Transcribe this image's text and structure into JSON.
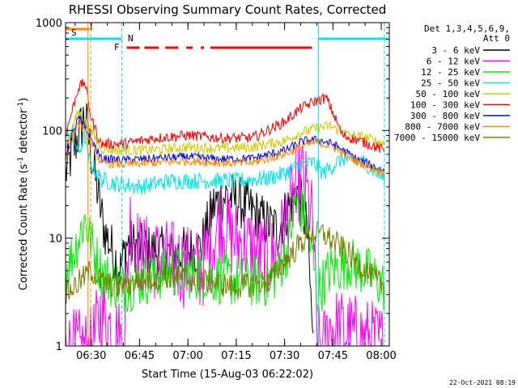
{
  "chart_data": {
    "type": "line",
    "title": "RHESSI Observing Summary Count Rates, Corrected",
    "xlabel": "Start Time (15-Aug-03 06:22:02)",
    "ylabel": "Corrected Count Rate (s-1 detector-1)",
    "ylabel_parts": {
      "main": "Corrected Count Rate (s",
      "exp1": "-1",
      "mid": " detector",
      "exp2": "-1",
      "end": ")"
    },
    "y_scale": "log",
    "ylim": [
      1,
      1000
    ],
    "y_ticks": [
      {
        "value": 1,
        "label": "1"
      },
      {
        "value": 10,
        "label": "10"
      },
      {
        "value": 100,
        "label": "100"
      },
      {
        "value": 1000,
        "label": "1000"
      }
    ],
    "xlim": [
      "06:22:02",
      "08:02:30"
    ],
    "x_ticks": [
      {
        "time": "06:30",
        "label": "06:30"
      },
      {
        "time": "06:45",
        "label": "06:45"
      },
      {
        "time": "07:00",
        "label": "07:00"
      },
      {
        "time": "07:15",
        "label": "07:15"
      },
      {
        "time": "07:30",
        "label": "07:30"
      },
      {
        "time": "07:45",
        "label": "07:45"
      },
      {
        "time": "08:00",
        "label": "08:00"
      }
    ],
    "grid": false,
    "legend_position": "right",
    "legend_header": [
      "Det 1,3,4,5,6,9,",
      "Att 0"
    ],
    "footer_date": "22-Oct-2021 08:19",
    "flags": {
      "saa": {
        "label": "S",
        "color": "#ff8c00",
        "start": "06:22:02",
        "end": "06:29:30"
      },
      "night": {
        "label": "N",
        "color": "#00e5e5",
        "segments": [
          [
            "06:22:02",
            "06:39:30"
          ],
          [
            "07:40:30",
            "08:02:00"
          ]
        ]
      },
      "flare": {
        "label": "F",
        "color": "#ff0000",
        "segments": [
          [
            "06:41:00",
            "06:45:00"
          ],
          [
            "06:46:30",
            "06:51:00"
          ],
          [
            "06:53:00",
            "06:57:00"
          ],
          [
            "06:59:30",
            "07:01:30"
          ],
          [
            "07:04:00",
            "07:05:00"
          ],
          [
            "07:07:00",
            "07:38:30"
          ]
        ]
      }
    },
    "vertical_lines": [
      {
        "time": "06:29:00",
        "color": "#ff8c00",
        "style": "solid"
      },
      {
        "time": "06:29:50",
        "color": "#ff8c00",
        "style": "dashed"
      },
      {
        "time": "06:39:30",
        "color": "#00e5e5",
        "style": "dashed"
      },
      {
        "time": "07:40:30",
        "color": "#00e5e5",
        "style": "solid"
      },
      {
        "time": "08:01:00",
        "color": "#00e5e5",
        "style": "dashed"
      }
    ],
    "series": [
      {
        "name": "3 - 6 keV",
        "color": "#000000",
        "noise": 0.25,
        "x": [
          "06:22",
          "06:26",
          "06:28",
          "06:30",
          "06:34",
          "06:39",
          "06:41",
          "06:45",
          "06:55",
          "07:04",
          "07:08",
          "07:12",
          "07:18",
          "07:24",
          "07:28",
          "07:32",
          "07:34",
          "07:37",
          "07:39"
        ],
        "y": [
          40,
          90,
          140,
          60,
          12,
          5,
          9,
          8,
          7,
          8,
          20,
          25,
          20,
          14,
          12,
          22,
          28,
          12,
          0.9
        ]
      },
      {
        "name": "6 - 12 keV",
        "color": "#ff00ff",
        "noise": 0.4,
        "x": [
          "06:22",
          "06:30",
          "06:33",
          "06:36",
          "06:40",
          "06:42",
          "06:45",
          "06:55",
          "07:04",
          "07:07",
          "07:10",
          "07:14",
          "07:20",
          "07:25",
          "07:28",
          "07:32",
          "07:35",
          "07:37",
          "07:39",
          "07:40",
          "07:42",
          "07:44",
          "08:01"
        ],
        "y": [
          0.9,
          0.9,
          2,
          1.5,
          1,
          15,
          7,
          6,
          5,
          8,
          15,
          10,
          8,
          6,
          8,
          20,
          40,
          25,
          12,
          1,
          0.9,
          1.5,
          1
        ]
      },
      {
        "name": "12 - 25 keV",
        "color": "#00ee00",
        "noise": 0.25,
        "x": [
          "06:22",
          "06:25",
          "06:28",
          "06:30",
          "06:33",
          "06:36",
          "06:40",
          "06:45",
          "06:55",
          "07:05",
          "07:15",
          "07:25",
          "07:28",
          "07:31",
          "07:33",
          "07:36",
          "07:39",
          "07:40",
          "07:44",
          "07:50",
          "07:57",
          "08:01"
        ],
        "y": [
          5,
          8,
          15,
          9,
          5,
          4,
          3.5,
          4,
          5,
          4.5,
          4,
          4,
          5,
          8,
          20,
          18,
          6,
          3,
          5,
          6,
          4.5,
          3.5
        ]
      },
      {
        "name": "25 - 50 keV",
        "color": "#00e5e5",
        "noise": 0.08,
        "x": [
          "06:22",
          "06:24",
          "06:26",
          "06:28",
          "06:29",
          "06:33",
          "06:38",
          "06:45",
          "06:55",
          "07:05",
          "07:15",
          "07:25",
          "07:30",
          "07:33",
          "07:36",
          "07:39",
          "07:42",
          "07:48",
          "07:55",
          "08:01"
        ],
        "y": [
          90,
          100,
          60,
          90,
          55,
          35,
          32,
          30,
          34,
          34,
          34,
          36,
          40,
          45,
          48,
          50,
          40,
          55,
          50,
          35
        ]
      },
      {
        "name": "50 - 100 keV",
        "color": "#d0c800",
        "noise": 0.05,
        "x": [
          "06:22",
          "06:26",
          "06:29",
          "06:33",
          "06:40",
          "06:50",
          "07:00",
          "07:10",
          "07:20",
          "07:30",
          "07:35",
          "07:40",
          "07:44",
          "07:50",
          "07:56",
          "08:01"
        ],
        "y": [
          70,
          150,
          110,
          68,
          65,
          66,
          70,
          68,
          70,
          80,
          95,
          105,
          110,
          90,
          85,
          75
        ]
      },
      {
        "name": "100 - 300 keV",
        "color": "#ff0000",
        "noise": 0.05,
        "x": [
          "06:22",
          "06:26",
          "06:28",
          "06:30",
          "06:33",
          "06:40",
          "06:50",
          "07:00",
          "07:10",
          "07:20",
          "07:30",
          "07:35",
          "07:40",
          "07:43",
          "07:48",
          "07:56",
          "08:01"
        ],
        "y": [
          90,
          250,
          280,
          130,
          75,
          75,
          85,
          90,
          85,
          85,
          120,
          160,
          190,
          200,
          90,
          75,
          65
        ]
      },
      {
        "name": "300 - 800 keV",
        "color": "#0000ff",
        "noise": 0.04,
        "x": [
          "06:22",
          "06:26",
          "06:29",
          "06:33",
          "06:40",
          "06:50",
          "07:00",
          "07:10",
          "07:20",
          "07:30",
          "07:36",
          "07:40",
          "07:45",
          "07:52",
          "08:01"
        ],
        "y": [
          60,
          130,
          95,
          55,
          53,
          55,
          57,
          54,
          55,
          65,
          80,
          82,
          75,
          55,
          42
        ]
      },
      {
        "name": "800 - 7000 keV",
        "color": "#ff8c00",
        "noise": 0.04,
        "x": [
          "06:22",
          "06:26",
          "06:29",
          "06:33",
          "06:40",
          "06:50",
          "07:00",
          "07:10",
          "07:20",
          "07:30",
          "07:36",
          "07:40",
          "07:45",
          "07:52",
          "08:01"
        ],
        "y": [
          55,
          120,
          85,
          50,
          48,
          50,
          52,
          50,
          50,
          60,
          72,
          78,
          70,
          52,
          40
        ]
      },
      {
        "name": "7000 - 15000 keV",
        "color": "#7a7a00",
        "noise": 0.12,
        "x": [
          "06:22",
          "06:30",
          "06:33",
          "06:38",
          "06:45",
          "06:55",
          "07:05",
          "07:15",
          "07:25",
          "07:30",
          "07:35",
          "07:38",
          "07:42",
          "07:48",
          "07:55",
          "08:01"
        ],
        "y": [
          3,
          5,
          4,
          3.5,
          4,
          4.5,
          4,
          3.5,
          4,
          6,
          9,
          11,
          11,
          8,
          5,
          3.5
        ]
      }
    ]
  }
}
